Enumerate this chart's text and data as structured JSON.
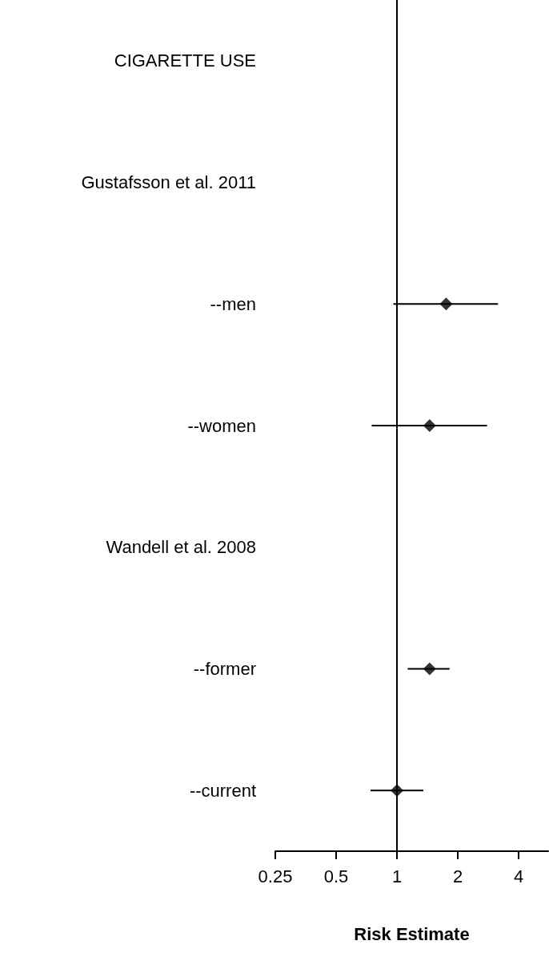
{
  "chart_data": {
    "type": "scatter",
    "orientation": "horizontal",
    "log": "x",
    "marker": "diamond",
    "color": "#000000",
    "categories": [
      "CIGARETTE USE",
      "Gustafsson et al. 2011",
      "--men",
      "--women",
      "Wandell et al. 2008",
      "--former",
      "--current"
    ],
    "values": [
      null,
      null,
      1.75,
      1.45,
      null,
      1.45,
      1.0
    ],
    "errors": [
      null,
      null,
      [
        0.96,
        3.16
      ],
      [
        0.75,
        2.79
      ],
      null,
      [
        1.13,
        1.82
      ],
      [
        0.74,
        1.35
      ]
    ],
    "xlim": [
      0.25,
      5.6
    ],
    "xticks": [
      0.25,
      0.5,
      1,
      2,
      4
    ],
    "xlabel": "Risk Estimate",
    "ref_lines": [
      {
        "axis": "x",
        "value": 1
      }
    ]
  }
}
